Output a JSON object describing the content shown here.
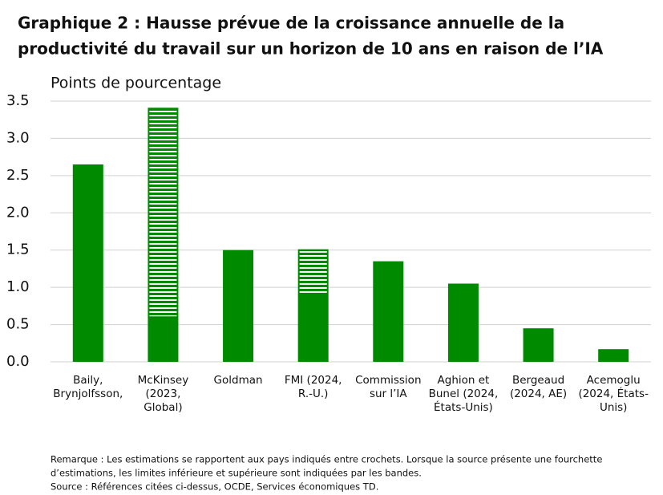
{
  "chart_data": {
    "type": "range-bar",
    "title": [
      "Graphique 2 : Hausse prévue de la croissance annuelle de la",
      "productivité du travail sur un horizon de 10 ans en raison de l’IA"
    ],
    "y_label": "Points de pourcentage",
    "categories": [
      [
        "Baily,",
        "Brynjolfsson,"
      ],
      [
        "McKinsey",
        "(2023,",
        "Global)"
      ],
      [
        "Goldman"
      ],
      [
        "FMI (2024,",
        "R.-U.)"
      ],
      [
        "Commission",
        "sur l’IA"
      ],
      [
        "Aghion et",
        "Bunel (2024,",
        "États-Unis)"
      ],
      [
        "Bergeaud",
        "(2024, AE)"
      ],
      [
        "Acemoglu",
        "(2024, États-",
        "Unis)"
      ]
    ],
    "values": [
      2.65,
      0.6,
      1.5,
      0.9,
      1.35,
      1.05,
      0.45,
      0.17
    ],
    "range_high": [
      null,
      3.4,
      null,
      1.5,
      null,
      null,
      null,
      null
    ],
    "color": "#008a00",
    "ylim": [
      0,
      3.5
    ],
    "yticks": [
      {
        "value": 0,
        "label": "0.0"
      },
      0.5,
      {
        "value": 1,
        "label": "1.0"
      },
      1.5,
      {
        "value": 2,
        "label": "2.0"
      },
      2.5,
      {
        "value": 3,
        "label": "3.0"
      },
      3.5
    ],
    "grid": true,
    "notes": [
      "Remarque : Les estimations se rapportent aux pays indiqués entre crochets. Lorsque la source présente une fourchette",
      "d’estimations, les limites inférieure et supérieure sont indiquées par les bandes.",
      "Source : Références citées ci-dessus, OCDE, Services économiques TD."
    ]
  }
}
